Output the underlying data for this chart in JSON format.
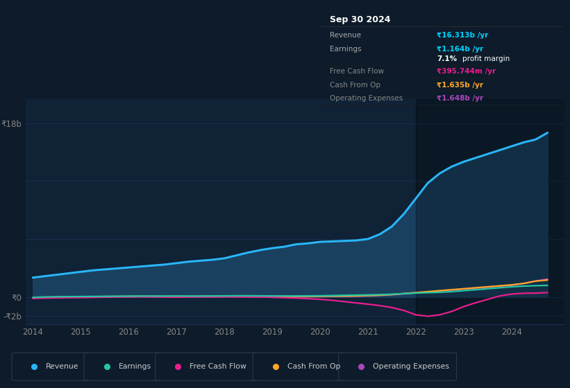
{
  "bg_color": "#0d1b2a",
  "plot_bg_color": "#0f2236",
  "grid_color": "#1a3050",
  "title_panel": "Sep 30 2024",
  "ylim": [
    -2.8,
    20.5
  ],
  "xlabel_years": [
    2014,
    2015,
    2016,
    2017,
    2018,
    2019,
    2020,
    2021,
    2022,
    2023,
    2024
  ],
  "legend_items": [
    {
      "label": "Revenue",
      "color": "#29b6f6"
    },
    {
      "label": "Earnings",
      "color": "#26c6a0"
    },
    {
      "label": "Free Cash Flow",
      "color": "#e91e8c"
    },
    {
      "label": "Cash From Op",
      "color": "#ffa726"
    },
    {
      "label": "Operating Expenses",
      "color": "#ab47bc"
    }
  ],
  "series": {
    "revenue": {
      "color": "#29b6f6",
      "fill_color": "#1a4060",
      "x": [
        2014.0,
        2014.25,
        2014.5,
        2014.75,
        2015.0,
        2015.25,
        2015.5,
        2015.75,
        2016.0,
        2016.25,
        2016.5,
        2016.75,
        2017.0,
        2017.25,
        2017.5,
        2017.75,
        2018.0,
        2018.25,
        2018.5,
        2018.75,
        2019.0,
        2019.25,
        2019.5,
        2019.75,
        2020.0,
        2020.25,
        2020.5,
        2020.75,
        2021.0,
        2021.25,
        2021.5,
        2021.75,
        2022.0,
        2022.25,
        2022.5,
        2022.75,
        2023.0,
        2023.25,
        2023.5,
        2023.75,
        2024.0,
        2024.25,
        2024.5,
        2024.75
      ],
      "y": [
        2.0,
        2.15,
        2.3,
        2.45,
        2.6,
        2.75,
        2.85,
        2.95,
        3.05,
        3.15,
        3.25,
        3.35,
        3.5,
        3.65,
        3.75,
        3.85,
        4.0,
        4.3,
        4.6,
        4.85,
        5.05,
        5.2,
        5.45,
        5.55,
        5.7,
        5.75,
        5.8,
        5.85,
        6.0,
        6.5,
        7.3,
        8.6,
        10.2,
        11.8,
        12.8,
        13.5,
        14.0,
        14.4,
        14.8,
        15.2,
        15.6,
        16.0,
        16.3,
        17.0
      ]
    },
    "earnings": {
      "color": "#26c6a0",
      "x": [
        2014.0,
        2014.25,
        2014.5,
        2014.75,
        2015.0,
        2015.25,
        2015.5,
        2015.75,
        2016.0,
        2016.25,
        2016.5,
        2016.75,
        2017.0,
        2017.25,
        2017.5,
        2017.75,
        2018.0,
        2018.25,
        2018.5,
        2018.75,
        2019.0,
        2019.25,
        2019.5,
        2019.75,
        2020.0,
        2020.25,
        2020.5,
        2020.75,
        2021.0,
        2021.25,
        2021.5,
        2021.75,
        2022.0,
        2022.25,
        2022.5,
        2022.75,
        2023.0,
        2023.25,
        2023.5,
        2023.75,
        2024.0,
        2024.25,
        2024.5,
        2024.75
      ],
      "y": [
        -0.05,
        0.0,
        0.02,
        0.03,
        0.04,
        0.05,
        0.06,
        0.07,
        0.08,
        0.09,
        0.09,
        0.09,
        0.1,
        0.09,
        0.09,
        0.1,
        0.11,
        0.12,
        0.12,
        0.11,
        0.1,
        0.1,
        0.1,
        0.11,
        0.12,
        0.14,
        0.17,
        0.19,
        0.21,
        0.24,
        0.28,
        0.34,
        0.4,
        0.44,
        0.48,
        0.55,
        0.65,
        0.75,
        0.85,
        0.95,
        1.05,
        1.12,
        1.164,
        1.2
      ]
    },
    "free_cash_flow": {
      "color": "#e91e8c",
      "x": [
        2014.0,
        2014.25,
        2014.5,
        2014.75,
        2015.0,
        2015.25,
        2015.5,
        2015.75,
        2016.0,
        2016.25,
        2016.5,
        2016.75,
        2017.0,
        2017.25,
        2017.5,
        2017.75,
        2018.0,
        2018.25,
        2018.5,
        2018.75,
        2019.0,
        2019.25,
        2019.5,
        2019.75,
        2020.0,
        2020.25,
        2020.5,
        2020.75,
        2021.0,
        2021.25,
        2021.5,
        2021.75,
        2022.0,
        2022.25,
        2022.5,
        2022.75,
        2023.0,
        2023.25,
        2023.5,
        2023.75,
        2024.0,
        2024.25,
        2024.5,
        2024.75
      ],
      "y": [
        -0.15,
        -0.12,
        -0.1,
        -0.08,
        -0.07,
        -0.05,
        -0.03,
        -0.01,
        0.0,
        0.01,
        0.0,
        -0.01,
        -0.02,
        -0.01,
        0.0,
        0.0,
        0.01,
        0.01,
        0.0,
        -0.01,
        -0.04,
        -0.08,
        -0.12,
        -0.18,
        -0.25,
        -0.35,
        -0.48,
        -0.62,
        -0.75,
        -0.9,
        -1.1,
        -1.4,
        -1.85,
        -2.0,
        -1.85,
        -1.5,
        -1.0,
        -0.6,
        -0.25,
        0.1,
        0.3,
        0.38,
        0.396,
        0.45
      ]
    },
    "cash_from_op": {
      "color": "#ffa726",
      "x": [
        2014.0,
        2014.25,
        2014.5,
        2014.75,
        2015.0,
        2015.25,
        2015.5,
        2015.75,
        2016.0,
        2016.25,
        2016.5,
        2016.75,
        2017.0,
        2017.25,
        2017.5,
        2017.75,
        2018.0,
        2018.25,
        2018.5,
        2018.75,
        2019.0,
        2019.25,
        2019.5,
        2019.75,
        2020.0,
        2020.25,
        2020.5,
        2020.75,
        2021.0,
        2021.25,
        2021.5,
        2021.75,
        2022.0,
        2022.25,
        2022.5,
        2022.75,
        2023.0,
        2023.25,
        2023.5,
        2023.75,
        2024.0,
        2024.25,
        2024.5,
        2024.75
      ],
      "y": [
        -0.08,
        -0.05,
        -0.02,
        0.0,
        0.02,
        0.03,
        0.04,
        0.05,
        0.06,
        0.07,
        0.07,
        0.06,
        0.06,
        0.06,
        0.07,
        0.08,
        0.09,
        0.09,
        0.09,
        0.08,
        0.07,
        0.07,
        0.06,
        0.06,
        0.07,
        0.08,
        0.09,
        0.11,
        0.14,
        0.18,
        0.25,
        0.35,
        0.45,
        0.55,
        0.65,
        0.75,
        0.85,
        0.95,
        1.05,
        1.15,
        1.25,
        1.4,
        1.635,
        1.75
      ]
    },
    "operating_expenses": {
      "color": "#ab47bc",
      "x": [
        2014.0,
        2014.25,
        2014.5,
        2014.75,
        2015.0,
        2015.25,
        2015.5,
        2015.75,
        2016.0,
        2016.25,
        2016.5,
        2016.75,
        2017.0,
        2017.25,
        2017.5,
        2017.75,
        2018.0,
        2018.25,
        2018.5,
        2018.75,
        2019.0,
        2019.25,
        2019.5,
        2019.75,
        2020.0,
        2020.25,
        2020.5,
        2020.75,
        2021.0,
        2021.25,
        2021.5,
        2021.75,
        2022.0,
        2022.25,
        2022.5,
        2022.75,
        2023.0,
        2023.25,
        2023.5,
        2023.75,
        2024.0,
        2024.25,
        2024.5,
        2024.75
      ],
      "y": [
        -0.12,
        -0.09,
        -0.06,
        -0.03,
        -0.01,
        0.01,
        0.02,
        0.03,
        0.04,
        0.04,
        0.03,
        0.02,
        0.02,
        0.02,
        0.03,
        0.03,
        0.03,
        0.03,
        0.02,
        0.01,
        0.01,
        0.02,
        0.02,
        0.03,
        0.04,
        0.05,
        0.06,
        0.08,
        0.12,
        0.16,
        0.22,
        0.32,
        0.42,
        0.52,
        0.62,
        0.72,
        0.82,
        0.92,
        1.02,
        1.12,
        1.22,
        1.38,
        1.648,
        1.85
      ]
    }
  }
}
